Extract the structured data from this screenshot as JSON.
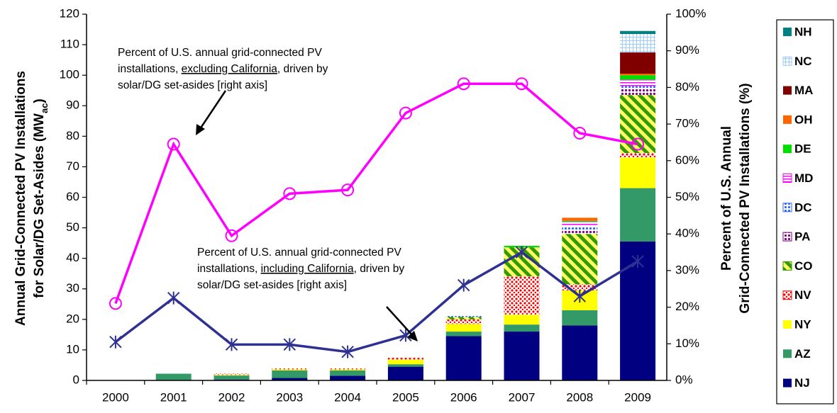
{
  "chart_data": {
    "type": "bar",
    "categories": [
      "2000",
      "2001",
      "2002",
      "2003",
      "2004",
      "2005",
      "2006",
      "2007",
      "2008",
      "2009"
    ],
    "ylim": [
      0,
      120
    ],
    "yticks": [
      0,
      10,
      20,
      30,
      40,
      50,
      60,
      70,
      80,
      90,
      100,
      110,
      120
    ],
    "y2lim": [
      0,
      100
    ],
    "y2ticks": [
      {
        "value": 0,
        "label": "0%"
      },
      {
        "value": 10,
        "label": "10%"
      },
      {
        "value": 20,
        "label": "20%"
      },
      {
        "value": 30,
        "label": "30%"
      },
      {
        "value": 40,
        "label": "40%"
      },
      {
        "value": 50,
        "label": "50%"
      },
      {
        "value": 60,
        "label": "60%"
      },
      {
        "value": 70,
        "label": "70%"
      },
      {
        "value": 80,
        "label": "80%"
      },
      {
        "value": 90,
        "label": "90%"
      },
      {
        "value": 100,
        "label": "100%"
      }
    ],
    "y_label": [
      "Annual Grid-Connected  PV Installations",
      "for Solar/DG Set-Asides  (MW",
      "ac",
      ")"
    ],
    "y2_label": [
      "Percent of U.S. Annual",
      "Grid-Connected  PV Installations (%)"
    ],
    "series": [
      {
        "name": "NJ",
        "color": "#000080",
        "pattern": "solid",
        "values": [
          0,
          0,
          0.3,
          0.8,
          1.5,
          4.5,
          14.5,
          16,
          18,
          45.5
        ]
      },
      {
        "name": "AZ",
        "color": "#339966",
        "pattern": "solid",
        "values": [
          0,
          2.2,
          1.3,
          2.5,
          1.8,
          0.8,
          1.5,
          2.3,
          5,
          17.5
        ]
      },
      {
        "name": "NY",
        "color": "#ffff00",
        "pattern": "solid",
        "values": [
          0,
          0,
          0.2,
          0.3,
          0.3,
          1.5,
          2.5,
          3.2,
          6.5,
          10
        ]
      },
      {
        "name": "NV",
        "color": "#ff0000",
        "pattern": "dots",
        "values": [
          0,
          0,
          0.4,
          0.3,
          0.3,
          0.6,
          1.5,
          12.6,
          2,
          1.5
        ]
      },
      {
        "name": "CO",
        "color": "#339900",
        "pattern": "stripes",
        "values": [
          0,
          0,
          0,
          0,
          0,
          0,
          0.8,
          9.5,
          16.5,
          19
        ]
      },
      {
        "name": "PA",
        "color": "#800080",
        "pattern": "dots",
        "values": [
          0,
          0,
          0,
          0,
          0,
          0,
          0,
          0,
          1.5,
          2
        ]
      },
      {
        "name": "DC",
        "color": "#3366ff",
        "pattern": "dots",
        "values": [
          0,
          0,
          0,
          0,
          0,
          0,
          0.6,
          0,
          1,
          1
        ]
      },
      {
        "name": "MD",
        "color": "#ff00ff",
        "pattern": "hbox",
        "values": [
          0,
          0,
          0,
          0,
          0,
          0,
          0,
          0,
          1.5,
          2
        ]
      },
      {
        "name": "DE",
        "color": "#00dd00",
        "pattern": "solid",
        "values": [
          0,
          0,
          0,
          0,
          0,
          0,
          0,
          0.5,
          0.3,
          1.5
        ]
      },
      {
        "name": "OH",
        "color": "#ff6600",
        "pattern": "solid",
        "values": [
          0,
          0,
          0,
          0,
          0,
          0,
          0,
          0,
          1,
          0.5
        ]
      },
      {
        "name": "MA",
        "color": "#800000",
        "pattern": "solid",
        "values": [
          0,
          0,
          0,
          0,
          0,
          0,
          0,
          0,
          0,
          7
        ]
      },
      {
        "name": "NC",
        "color": "#99ccff",
        "pattern": "grid",
        "values": [
          0,
          0,
          0,
          0,
          0,
          0,
          0,
          0,
          0,
          6
        ]
      },
      {
        "name": "NH",
        "color": "#008080",
        "pattern": "solid",
        "values": [
          0,
          0,
          0,
          0,
          0,
          0,
          0,
          0,
          0,
          1
        ]
      }
    ],
    "lines": [
      {
        "color": "#ff00ff",
        "marker": "circle",
        "axis": "y2",
        "values": [
          21,
          64.5,
          39.5,
          51,
          52,
          73,
          81,
          81,
          67.5,
          64.5
        ]
      },
      {
        "color": "#2e3192",
        "marker": "star",
        "axis": "y2",
        "values": [
          10.5,
          22.5,
          9.8,
          9.8,
          7.8,
          12.3,
          26,
          35,
          23,
          32.5
        ]
      }
    ],
    "annotations": [
      {
        "lines": [
          [
            {
              "text": "Percent of U.S. annual grid-connected PV"
            }
          ],
          [
            {
              "text": "installations, "
            },
            {
              "text": "excluding California",
              "underline": true
            },
            {
              "text": ", driven by"
            }
          ],
          [
            {
              "text": "solar/DG set-asides [right axis]"
            }
          ]
        ]
      },
      {
        "lines": [
          [
            {
              "text": "Percent of U.S. annual grid-connected PV"
            }
          ],
          [
            {
              "text": "installations, "
            },
            {
              "text": "including California",
              "underline": true
            },
            {
              "text": ", driven by"
            }
          ],
          [
            {
              "text": "solar/DG set-asides [right axis]"
            }
          ]
        ]
      }
    ]
  }
}
